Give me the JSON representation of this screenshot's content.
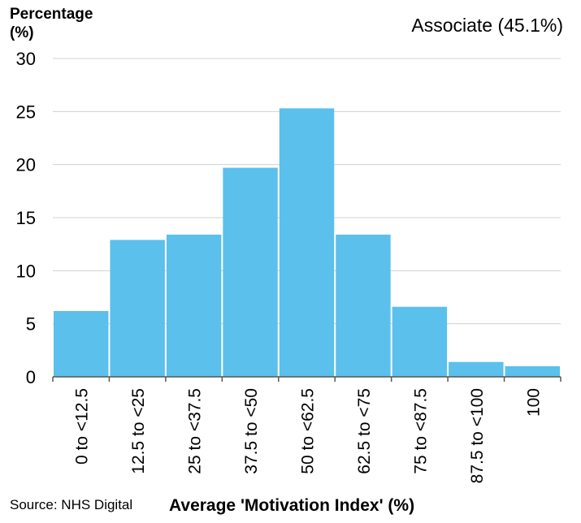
{
  "chart_data": {
    "type": "bar",
    "title": "",
    "ylabel": "Percentage (%)",
    "xlabel": "Average 'Motivation Index' (%)",
    "annotation": "Associate (45.1%)",
    "source": "Source: NHS Digital",
    "categories": [
      "0 to <12.5",
      "12.5 to <25",
      "25 to <37.5",
      "37.5 to <50",
      "50 to <62.5",
      "62.5 to <75",
      "75 to <87.5",
      "87.5 to <100",
      "100"
    ],
    "values": [
      6.2,
      12.9,
      13.4,
      19.7,
      25.3,
      13.4,
      6.6,
      1.4,
      1.0
    ],
    "ylim": [
      0,
      30
    ],
    "yticks": [
      "0",
      "5",
      "10",
      "15",
      "20",
      "25",
      "30"
    ],
    "grid": true,
    "bar_color": "#5bc0eb",
    "grid_color": "#d0d0d0"
  }
}
